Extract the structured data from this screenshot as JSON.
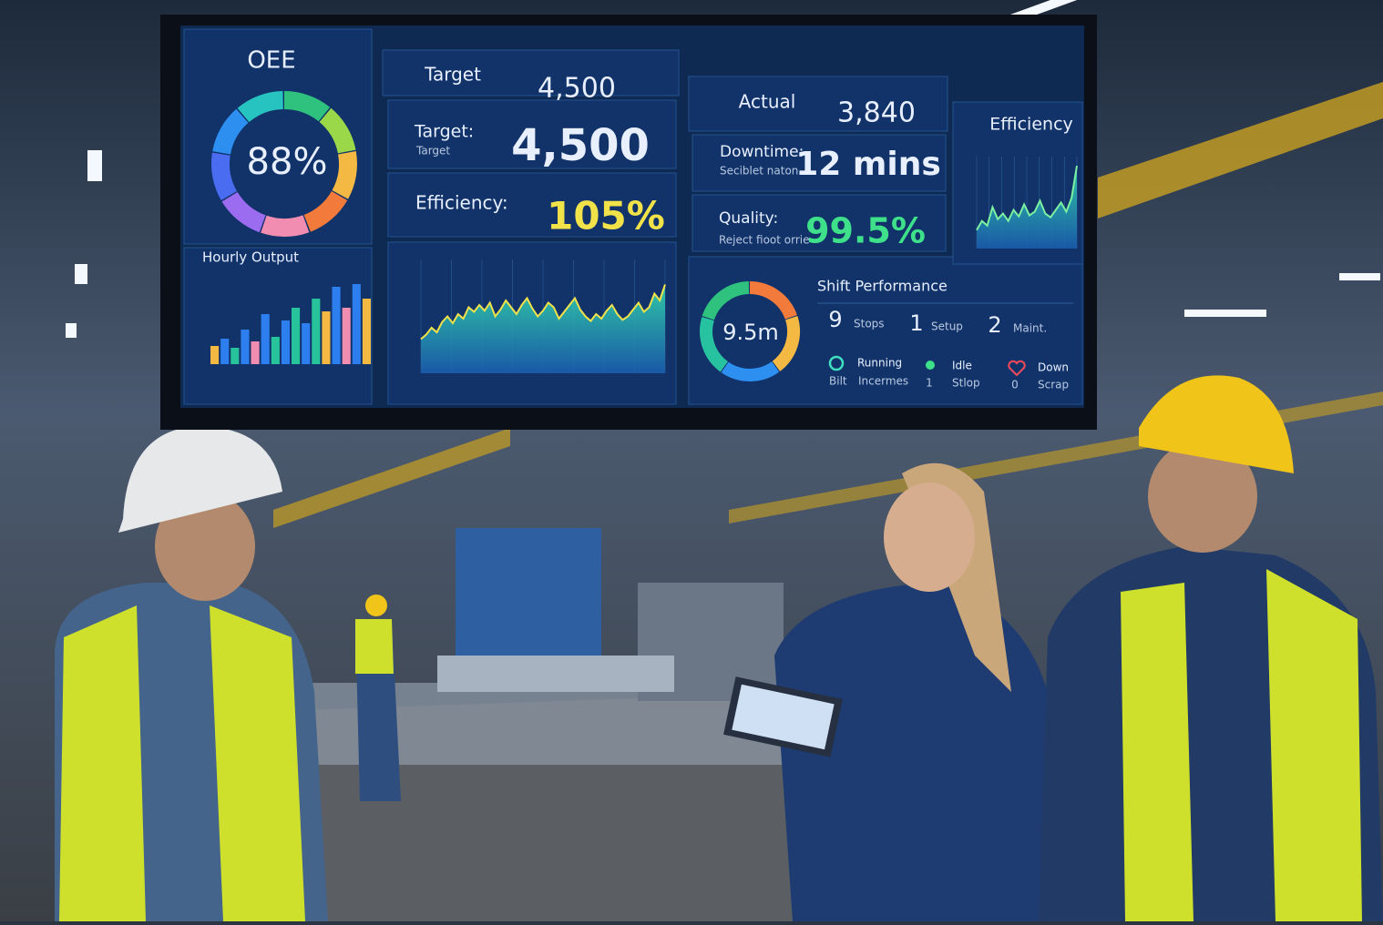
{
  "dashboard": {
    "oee": {
      "title": "OEE",
      "value": "88%"
    },
    "target_header": {
      "label": "Target",
      "value": "4,500"
    },
    "actual_header": {
      "label": "Actual",
      "value": "3,840"
    },
    "efficiency_header": "Efficiency",
    "target_card": {
      "label": "Target:",
      "sublabel": "Target",
      "value": "4,500"
    },
    "efficiency_card": {
      "label": "Efficiency:",
      "value": "105%"
    },
    "downtime_card": {
      "label": "Downtime:",
      "sublabel": "Seciblet naton",
      "value": "12 mins"
    },
    "quality_card": {
      "label": "Quality:",
      "sublabel": "Reject fioot orrie",
      "value": "99.5%"
    },
    "hourly_output": {
      "title": "Hourly Output",
      "ylim": [
        0,
        100
      ],
      "values": [
        20,
        28,
        18,
        38,
        25,
        55,
        30,
        48,
        62,
        45,
        72,
        58,
        85,
        62,
        88,
        72
      ],
      "colors": [
        "#f4b942",
        "#2d7ff0",
        "#27c39a",
        "#2d7ff0",
        "#f28db2",
        "#2d7ff0",
        "#27c39a",
        "#2d7ff0",
        "#27c39a",
        "#2d7ff0",
        "#27c39a",
        "#f4b942",
        "#2d7ff0",
        "#f28db2",
        "#2d7ff0",
        "#f4b942"
      ]
    },
    "production_trend": {
      "ylim": [
        0,
        100
      ],
      "values": [
        30,
        34,
        40,
        36,
        45,
        50,
        44,
        52,
        48,
        58,
        54,
        60,
        55,
        62,
        50,
        56,
        64,
        58,
        52,
        60,
        66,
        57,
        50,
        55,
        62,
        58,
        48,
        54,
        60,
        66,
        56,
        50,
        46,
        52,
        48,
        55,
        60,
        52,
        47,
        50,
        56,
        62,
        54,
        58,
        70,
        64,
        78
      ]
    },
    "efficiency_trend": {
      "ylim": [
        0,
        100
      ],
      "values": [
        20,
        30,
        25,
        45,
        32,
        38,
        30,
        42,
        35,
        48,
        36,
        40,
        52,
        38,
        34,
        42,
        50,
        40,
        55,
        90
      ]
    },
    "shift_ring": "9.5m",
    "shift_performance": {
      "title": "Shift Performance",
      "stats": [
        {
          "value": "9",
          "label": "Stops"
        },
        {
          "value": "1",
          "label": "Setup"
        },
        {
          "value": "2",
          "label": "Maint."
        }
      ],
      "states": [
        {
          "label": "Running",
          "count": "Bilt",
          "sublabel": "Incermes"
        },
        {
          "label": "Idle",
          "count": "1",
          "sublabel": "Stlop"
        },
        {
          "label": "Down",
          "count": "0",
          "sublabel": "Scrap"
        }
      ]
    }
  }
}
